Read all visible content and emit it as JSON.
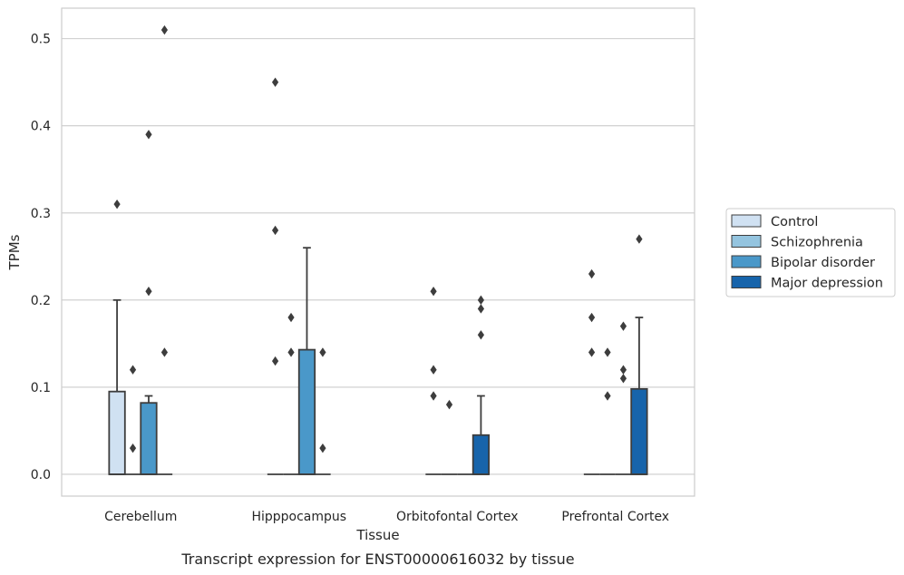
{
  "chart_data": {
    "type": "box",
    "title": "Transcript expression for ENST00000616032 by tissue",
    "xlabel": "Tissue",
    "ylabel": "TPMs",
    "ylim": [
      -0.025,
      0.535
    ],
    "yticks": [
      0.0,
      0.1,
      0.2,
      0.3,
      0.4,
      0.5
    ],
    "ytick_labels": [
      "0.0",
      "0.1",
      "0.2",
      "0.3",
      "0.4",
      "0.5"
    ],
    "grid": true,
    "legend_position": "right",
    "categories": [
      "Cerebellum",
      "Hipppocampus",
      "Orbitofontal Cortex",
      "Prefrontal Cortex"
    ],
    "series": [
      {
        "name": "Control",
        "color": "#d0e1f2",
        "boxes": [
          {
            "q1": 0.0,
            "median": 0.0,
            "q3": 0.095,
            "whisker_low": 0.0,
            "whisker_high": 0.2,
            "outliers": [
              0.31
            ]
          },
          {
            "q1": 0.0,
            "median": 0.0,
            "q3": 0.0,
            "whisker_low": 0.0,
            "whisker_high": 0.0,
            "outliers": [
              0.45,
              0.28,
              0.13
            ]
          },
          {
            "q1": 0.0,
            "median": 0.0,
            "q3": 0.0,
            "whisker_low": 0.0,
            "whisker_high": 0.0,
            "outliers": [
              0.21,
              0.12,
              0.09
            ]
          },
          {
            "q1": 0.0,
            "median": 0.0,
            "q3": 0.0,
            "whisker_low": 0.0,
            "whisker_high": 0.0,
            "outliers": [
              0.23,
              0.18,
              0.14
            ]
          }
        ]
      },
      {
        "name": "Schizophrenia",
        "color": "#94c4df",
        "boxes": [
          {
            "q1": 0.0,
            "median": 0.0,
            "q3": 0.0,
            "whisker_low": 0.0,
            "whisker_high": 0.0,
            "outliers": [
              0.12,
              0.03
            ]
          },
          {
            "q1": 0.0,
            "median": 0.0,
            "q3": 0.0,
            "whisker_low": 0.0,
            "whisker_high": 0.0,
            "outliers": [
              0.18,
              0.14
            ]
          },
          {
            "q1": 0.0,
            "median": 0.0,
            "q3": 0.0,
            "whisker_low": 0.0,
            "whisker_high": 0.0,
            "outliers": [
              0.08
            ]
          },
          {
            "q1": 0.0,
            "median": 0.0,
            "q3": 0.0,
            "whisker_low": 0.0,
            "whisker_high": 0.0,
            "outliers": [
              0.14,
              0.09
            ]
          }
        ]
      },
      {
        "name": "Bipolar disorder",
        "color": "#4a98c9",
        "boxes": [
          {
            "q1": 0.0,
            "median": 0.0,
            "q3": 0.082,
            "whisker_low": 0.0,
            "whisker_high": 0.09,
            "outliers": [
              0.39,
              0.21
            ]
          },
          {
            "q1": 0.0,
            "median": 0.0,
            "q3": 0.143,
            "whisker_low": 0.0,
            "whisker_high": 0.26,
            "outliers": []
          },
          {
            "q1": 0.0,
            "median": 0.0,
            "q3": 0.0,
            "whisker_low": 0.0,
            "whisker_high": 0.0,
            "outliers": []
          },
          {
            "q1": 0.0,
            "median": 0.0,
            "q3": 0.0,
            "whisker_low": 0.0,
            "whisker_high": 0.0,
            "outliers": [
              0.17,
              0.12,
              0.11
            ]
          }
        ]
      },
      {
        "name": "Major depression",
        "color": "#1764ab",
        "boxes": [
          {
            "q1": 0.0,
            "median": 0.0,
            "q3": 0.0,
            "whisker_low": 0.0,
            "whisker_high": 0.0,
            "outliers": [
              0.51,
              0.14
            ]
          },
          {
            "q1": 0.0,
            "median": 0.0,
            "q3": 0.0,
            "whisker_low": 0.0,
            "whisker_high": 0.0,
            "outliers": [
              0.14,
              0.03
            ]
          },
          {
            "q1": 0.0,
            "median": 0.0,
            "q3": 0.045,
            "whisker_low": 0.0,
            "whisker_high": 0.09,
            "outliers": [
              0.2,
              0.19,
              0.16
            ]
          },
          {
            "q1": 0.0,
            "median": 0.0,
            "q3": 0.098,
            "whisker_low": 0.0,
            "whisker_high": 0.18,
            "outliers": [
              0.27
            ]
          }
        ]
      }
    ]
  }
}
